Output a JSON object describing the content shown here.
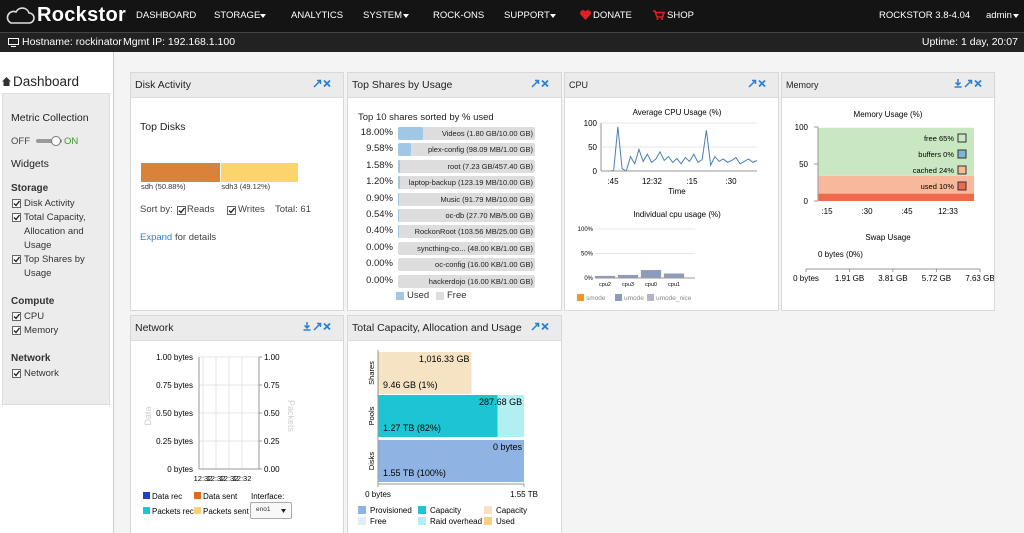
{
  "nav": {
    "brand": "Rockstor",
    "items": [
      {
        "label": "DASHBOARD",
        "menu": false
      },
      {
        "label": "STORAGE",
        "menu": true
      },
      {
        "label": "ANALYTICS",
        "menu": false
      },
      {
        "label": "SYSTEM",
        "menu": true
      },
      {
        "label": "ROCK-ONS",
        "menu": false
      },
      {
        "label": "SUPPORT",
        "menu": true
      },
      {
        "label": "DONATE",
        "menu": false
      },
      {
        "label": "SHOP",
        "menu": false
      }
    ],
    "version": "ROCKSTOR 3.8-4.04",
    "user": "admin"
  },
  "status": {
    "hostname": "Hostname: rockinator",
    "ip": "Mgmt IP: 192.168.1.100",
    "uptime": "Uptime: 1 day, 20:07"
  },
  "sidebar": {
    "title": "Dashboard",
    "metric": "Metric Collection",
    "off": "OFF",
    "on": "ON",
    "widgets": "Widgets",
    "groups": [
      {
        "name": "Storage",
        "items": [
          "Disk Activity",
          "Total Capacity, Allocation and Usage",
          "Top Shares by Usage"
        ]
      },
      {
        "name": "Compute",
        "items": [
          "CPU",
          "Memory"
        ]
      },
      {
        "name": "Network",
        "items": [
          "Network"
        ]
      }
    ]
  },
  "disk_activity": {
    "title": "Disk Activity",
    "subtitle": "Top Disks",
    "disks": [
      {
        "label": "sdh (50.88%)",
        "value": 50.88,
        "color": "#d9833a"
      },
      {
        "label": "sdh3 (49.12%)",
        "value": 49.12,
        "color": "#fdd36b"
      }
    ],
    "sort_by": "Sort by:",
    "reads": "Reads",
    "writes": "Writes",
    "total": "Total: 61",
    "expand": "Expand",
    "expand_rest": "for details"
  },
  "top_shares": {
    "title": "Top Shares by Usage",
    "subtitle": "Top 10 shares sorted by % used",
    "rows": [
      {
        "percent": "18.00%",
        "value": 18.0,
        "label": "Videos (1.80 GB/10.00 GB)"
      },
      {
        "percent": "9.58%",
        "value": 9.58,
        "label": "plex-config (98.09 MB/1.00 GB)"
      },
      {
        "percent": "1.58%",
        "value": 1.58,
        "label": "root (7.23 GB/457.40 GB)"
      },
      {
        "percent": "1.20%",
        "value": 1.2,
        "label": "laptop-backup (123.19 MB/10.00 GB)"
      },
      {
        "percent": "0.90%",
        "value": 0.9,
        "label": "Music (91.79 MB/10.00 GB)"
      },
      {
        "percent": "0.54%",
        "value": 0.54,
        "label": "oc-db (27.70 MB/5.00 GB)"
      },
      {
        "percent": "0.40%",
        "value": 0.4,
        "label": "RockonRoot (103.56 MB/25.00 GB)"
      },
      {
        "percent": "0.00%",
        "value": 0,
        "label": "syncthing-co... (48.00 KB/1.00 GB)"
      },
      {
        "percent": "0.00%",
        "value": 0,
        "label": "oc-config (16.00 KB/1.00 GB)"
      },
      {
        "percent": "0.00%",
        "value": 0,
        "label": "hackerdojo (16.00 KB/1.00 GB)"
      }
    ],
    "used_color": "#9ec8e6",
    "free_color": "#dddddd",
    "legend": [
      "Used",
      "Free"
    ]
  },
  "cpu": {
    "title": "CPU",
    "average": {
      "type": "line",
      "title": "Average CPU Usage (%)",
      "x_label": "Time",
      "color": "#4a7fb5",
      "values": [
        0,
        0,
        0,
        1,
        92,
        5,
        0,
        30,
        15,
        45,
        20,
        35,
        18,
        25,
        40,
        22,
        30,
        18,
        26,
        15,
        28,
        20,
        35,
        18,
        24,
        85,
        12,
        30,
        20,
        25,
        18,
        22,
        28,
        15,
        20,
        25,
        18,
        22
      ],
      "ylim": [
        0,
        100
      ],
      "yticks": [
        0,
        50,
        100
      ],
      "xticks": [
        ":45",
        "12:32",
        ":15",
        ":30"
      ]
    },
    "individual": {
      "type": "bar",
      "title": "Individual cpu usage (%)",
      "categories": [
        "cpu2",
        "cpu3",
        "cpu0",
        "cpu1"
      ],
      "series": [
        {
          "name": "smode",
          "color": "#f7941d",
          "values": [
            1,
            1,
            1,
            1
          ]
        },
        {
          "name": "umode",
          "color": "#8c9bbd",
          "values": [
            3,
            5,
            15,
            8
          ]
        },
        {
          "name": "umode_nice",
          "color": "#b4b4c8",
          "values": [
            0,
            0,
            0,
            0
          ]
        }
      ],
      "ylim": [
        0,
        100
      ],
      "yticks": [
        {
          "value": 0,
          "label": "0%"
        },
        {
          "value": 50,
          "label": "50%"
        },
        {
          "value": 100,
          "label": "100%"
        }
      ]
    }
  },
  "memory": {
    "title": "Memory",
    "usage": {
      "type": "area",
      "title": "Memory Usage (%)",
      "series": [
        {
          "name": "used 10%",
          "value": 10,
          "color": "#ef6a4c"
        },
        {
          "name": "cached 24%",
          "value": 24,
          "color": "#f8b89b"
        },
        {
          "name": "buffers 0%",
          "value": 0,
          "color": "#7fb6d8"
        },
        {
          "name": "free 65%",
          "value": 65,
          "color": "#c9e7c1"
        }
      ],
      "ylim": [
        0,
        100
      ],
      "yticks": [
        0,
        50,
        100
      ],
      "xticks": [
        ":15",
        ":30",
        ":45",
        "12:33"
      ]
    },
    "swap": {
      "title": "Swap Usage",
      "label": "0 bytes (0%)",
      "xlim": [
        0,
        7.63
      ],
      "xticks": [
        {
          "value": 0,
          "label": "0 bytes"
        },
        {
          "value": 1.91,
          "label": "1.91 GB"
        },
        {
          "value": 3.81,
          "label": "3.81 GB"
        },
        {
          "value": 5.72,
          "label": "5.72 GB"
        },
        {
          "value": 7.63,
          "label": "7.63 GB"
        }
      ]
    }
  },
  "network": {
    "title": "Network",
    "y_label": "Data",
    "y2_label": "Packets",
    "ylim": [
      0,
      1
    ],
    "yticks": [
      {
        "value": 1,
        "label": "1.00 bytes"
      },
      {
        "value": 0.75,
        "label": "0.75 bytes"
      },
      {
        "value": 0.5,
        "label": "0.50 bytes"
      },
      {
        "value": 0.25,
        "label": "0.25 bytes"
      },
      {
        "value": 0,
        "label": "0 bytes"
      }
    ],
    "y2lim": [
      0,
      1
    ],
    "y2ticks": [
      {
        "value": 1,
        "label": "1.00"
      },
      {
        "value": 0.75,
        "label": "0.75"
      },
      {
        "value": 0.5,
        "label": "0.50"
      },
      {
        "value": 0.25,
        "label": "0.25"
      },
      {
        "value": 0,
        "label": "0.00"
      }
    ],
    "xticks": [
      "12:32",
      "12:32",
      "12:32",
      "12:32"
    ],
    "series": [
      {
        "name": "Data rec",
        "color": "#1f3fcf"
      },
      {
        "name": "Data sent",
        "color": "#e46a1b"
      },
      {
        "name": "Packets rec",
        "color": "#1cc5d3"
      },
      {
        "name": "Packets sent",
        "color": "#f8cf7c"
      }
    ],
    "interface_label": "Interface:",
    "interface": "eno1"
  },
  "capacity": {
    "title": "Total Capacity, Allocation and Usage",
    "type": "bar",
    "xlim": [
      0,
      1587.2
    ],
    "xticks": [
      {
        "value": 0,
        "label": "0 bytes"
      },
      {
        "value": 1587.2,
        "label": "1.55 TB"
      }
    ],
    "bars": [
      {
        "name": "Shares",
        "stacked": false,
        "segments": [
          {
            "value": 9.46,
            "label": "9.46 GB (1%)",
            "color": "#f8cf7c"
          },
          {
            "value": 1016.33,
            "label": "1,016.33 GB",
            "color": "#f5e3c3"
          }
        ]
      },
      {
        "name": "Pools",
        "stacked": true,
        "segments": [
          {
            "value": 1300.48,
            "label": "1.27 TB (82%)",
            "color": "#1cc5d3"
          },
          {
            "value": 287.68,
            "label": "287.68 GB",
            "color": "#b2eff2"
          }
        ]
      },
      {
        "name": "Disks",
        "stacked": true,
        "segments": [
          {
            "value": 1587.2,
            "label": "1.55 TB (100%)",
            "color": "#8fb4e3"
          },
          {
            "value": 0,
            "label": "0 bytes",
            "color": "#e2ecf7"
          }
        ]
      }
    ],
    "legend": [
      {
        "name": "Provisioned",
        "color": "#8fb4e3"
      },
      {
        "name": "Capacity",
        "color": "#1cc5d3"
      },
      {
        "name": "Capacity",
        "color": "#f5e3c3"
      },
      {
        "name": "Free",
        "color": "#e2ecf7"
      },
      {
        "name": "Raid overhead",
        "color": "#b2eff2"
      },
      {
        "name": "Used",
        "color": "#f8cf7c"
      }
    ]
  }
}
